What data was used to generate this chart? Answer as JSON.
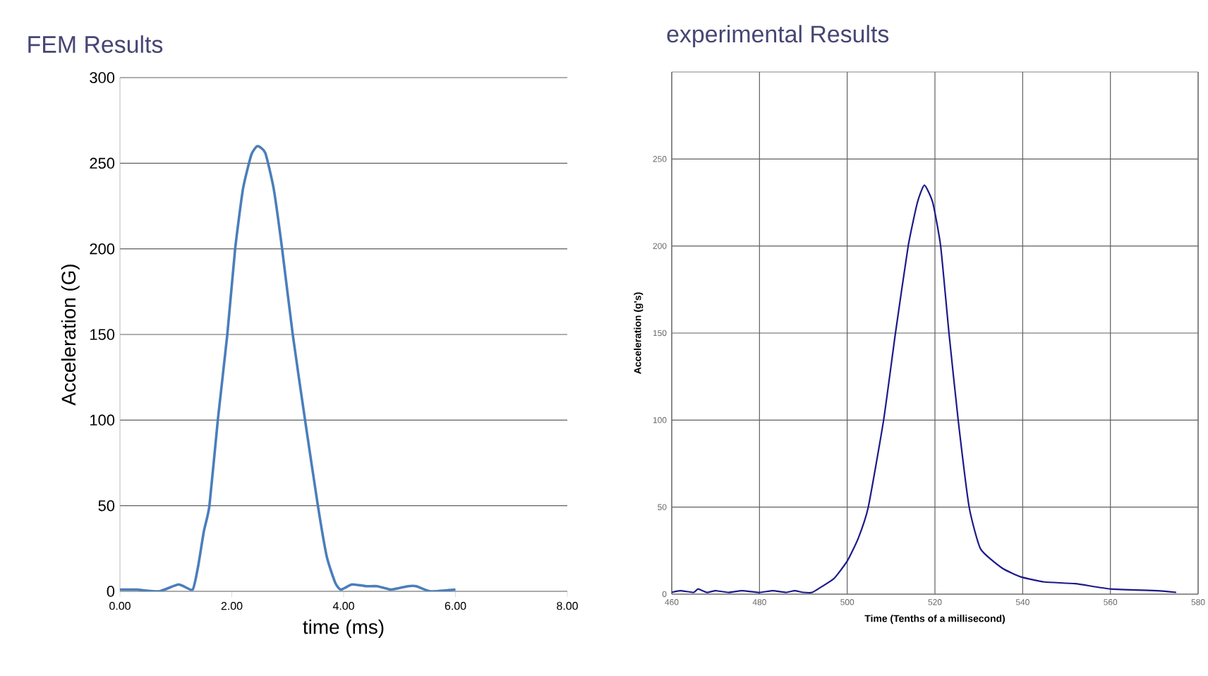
{
  "chart_data": [
    {
      "type": "line",
      "title": "FEM Results",
      "xlabel": "time (ms)",
      "ylabel": "Acceleration (G)",
      "xlim": [
        0,
        8
      ],
      "ylim": [
        0,
        300
      ],
      "xticks": [
        {
          "value": 0,
          "label": "0.00"
        },
        {
          "value": 2,
          "label": "2.00"
        },
        {
          "value": 4,
          "label": "4.00"
        },
        {
          "value": 6,
          "label": "6.00"
        },
        {
          "value": 8,
          "label": "8.00"
        }
      ],
      "yticks": [
        0,
        50,
        100,
        150,
        200,
        250,
        300
      ],
      "grid": "y",
      "series": [
        {
          "color": "#4a7ebb",
          "x": [
            0,
            0.3,
            0.7,
            1.05,
            1.3,
            1.4,
            1.5,
            1.6,
            1.75,
            1.92,
            2.06,
            2.2,
            2.35,
            2.46,
            2.6,
            2.75,
            2.9,
            3.09,
            3.31,
            3.54,
            3.7,
            3.85,
            3.95,
            4.15,
            4.4,
            4.6,
            4.85,
            5.15,
            5.3,
            5.55,
            6.0
          ],
          "values": [
            1,
            1,
            0,
            4,
            1,
            15,
            35,
            50,
            100,
            150,
            200,
            235,
            255,
            260,
            256,
            235,
            200,
            150,
            100,
            50,
            20,
            5,
            1,
            4,
            3,
            3,
            1,
            3,
            3,
            0,
            1
          ]
        }
      ]
    },
    {
      "type": "line",
      "title": "experimental Results",
      "xlabel": "Time (Tenths of a millisecond)",
      "ylabel": "Acceleration (g's)",
      "xlim": [
        460,
        580
      ],
      "ylim": [
        0,
        300
      ],
      "xticks": [
        460,
        480,
        500,
        520,
        540,
        560,
        580
      ],
      "yticks": [
        0,
        50,
        100,
        150,
        200,
        250
      ],
      "grid": true,
      "series": [
        {
          "color": "#1c1a8a",
          "x": [
            460,
            462,
            465,
            466,
            468,
            470,
            473,
            476,
            480,
            483,
            486,
            488,
            490,
            492,
            494,
            497,
            500,
            502.5,
            504.8,
            508.3,
            511,
            513.9,
            516,
            517.6,
            519.5,
            521.3,
            523.2,
            525.3,
            527.8,
            530.4,
            535.3,
            539.5,
            545,
            552,
            560,
            570.6,
            575
          ],
          "values": [
            1,
            2,
            1,
            3,
            1,
            2,
            1,
            2,
            1,
            2,
            1,
            2,
            1,
            1,
            4,
            9,
            19,
            32,
            50,
            100,
            150,
            200,
            225,
            235,
            225,
            200,
            150,
            100,
            50,
            26,
            15,
            10,
            7,
            6,
            3,
            2,
            1
          ]
        }
      ]
    }
  ]
}
